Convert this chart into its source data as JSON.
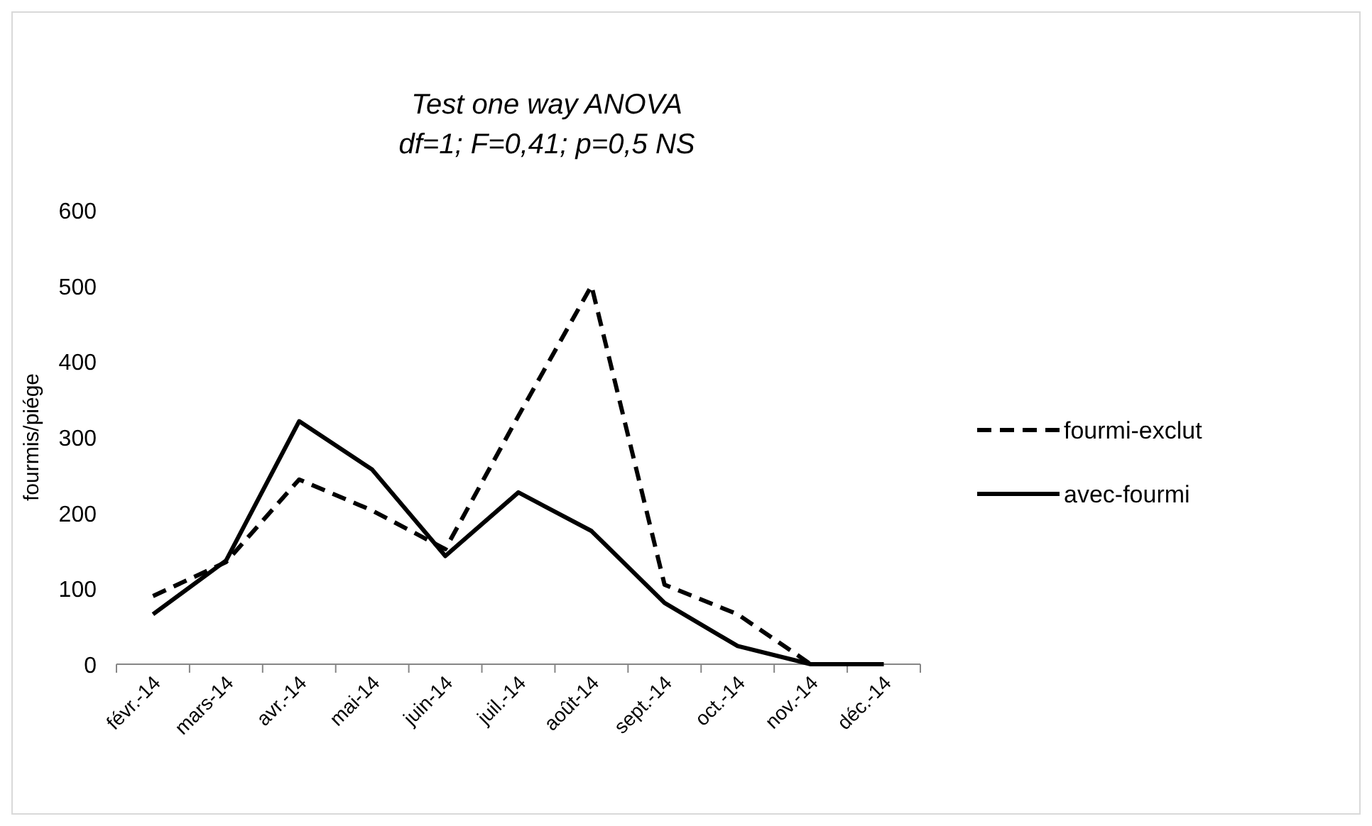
{
  "chart_data": {
    "type": "line",
    "title": "Test one way ANOVA",
    "subtitle": "df=1; F=0,41; p=0,5 NS",
    "ylabel": "fourmis/piége",
    "categories": [
      "févr.-14",
      "mars-14",
      "avr.-14",
      "mai-14",
      "juin-14",
      "juil.-14",
      "août-14",
      "sept.-14",
      "oct.-14",
      "nov.-14",
      "déc.-14"
    ],
    "series": [
      {
        "name": "fourmi-exclut",
        "color": "#000000",
        "line_style": "dashed",
        "values": [
          90,
          135,
          244,
          203,
          152,
          328,
          500,
          105,
          66,
          0,
          0
        ]
      },
      {
        "name": "avec-fourmi",
        "color": "#000000",
        "line_style": "solid",
        "values": [
          66,
          137,
          321,
          257,
          143,
          227,
          176,
          81,
          24,
          0,
          0
        ]
      }
    ],
    "ylim": [
      0,
      600
    ],
    "yticks": [
      0,
      100,
      200,
      300,
      400,
      500,
      600
    ],
    "grid": false,
    "legend": "right",
    "marker": "none"
  }
}
